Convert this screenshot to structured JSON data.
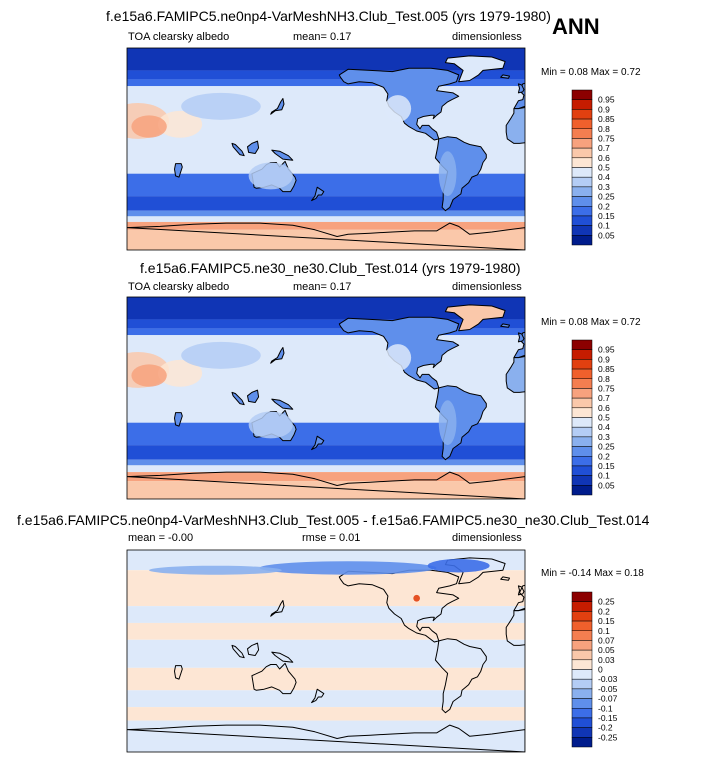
{
  "season": "ANN",
  "chart_data": [
    {
      "type": "heatmap",
      "title": "f.e15a6.FAMIPC5.ne0np4-VarMeshNH3.Club_Test.005 (yrs 1979-1980)",
      "left_label": "TOA clearsky albedo",
      "center_label": "mean=  0.17",
      "right_label": "dimensionless",
      "minmax_label": "Min = 0.08 Max =  0.72",
      "colorbar": {
        "levels": [
          "0.95",
          "0.9",
          "0.85",
          "0.8",
          "0.75",
          "0.7",
          "0.6",
          "0.5",
          "0.4",
          "0.3",
          "0.25",
          "0.2",
          "0.15",
          "0.1",
          "0.05"
        ],
        "colors": [
          "#8c0000",
          "#c61c00",
          "#e24010",
          "#f0602c",
          "#f47e50",
          "#f7a27e",
          "#fac8aa",
          "#fde6d4",
          "#dde9fa",
          "#b4cdf5",
          "#8ab0ee",
          "#5f8feb",
          "#3c6ee8",
          "#204fd6",
          "#1035b5",
          "#001c8c"
        ]
      },
      "bands": [
        {
          "y": 90,
          "color": "#1035b5"
        },
        {
          "y": 70,
          "color": "#204fd6"
        },
        {
          "y": 62,
          "color": "#3c6ee8"
        },
        {
          "y": 56,
          "color": "#dde9fa"
        },
        {
          "y": -22,
          "color": "#3c6ee8"
        },
        {
          "y": -42,
          "color": "#204fd6"
        },
        {
          "y": -55,
          "color": "#5f8feb"
        },
        {
          "y": -60,
          "color": "#dde9fa"
        },
        {
          "y": -65,
          "color": "#f7a27e"
        },
        {
          "y": -72,
          "color": "#fac8aa"
        }
      ]
    },
    {
      "type": "heatmap",
      "title": "f.e15a6.FAMIPC5.ne30_ne30.Club_Test.014 (yrs 1979-1980)",
      "left_label": "TOA clearsky albedo",
      "center_label": "mean=  0.17",
      "right_label": "dimensionless",
      "minmax_label": "Min =  0.08 Max =  0.72",
      "colorbar": {
        "levels": [
          "0.95",
          "0.9",
          "0.85",
          "0.8",
          "0.75",
          "0.7",
          "0.6",
          "0.5",
          "0.4",
          "0.3",
          "0.25",
          "0.2",
          "0.15",
          "0.1",
          "0.05"
        ],
        "colors": [
          "#8c0000",
          "#c61c00",
          "#e24010",
          "#f0602c",
          "#f47e50",
          "#f7a27e",
          "#fac8aa",
          "#fde6d4",
          "#dde9fa",
          "#b4cdf5",
          "#8ab0ee",
          "#5f8feb",
          "#3c6ee8",
          "#204fd6",
          "#1035b5",
          "#001c8c"
        ]
      },
      "bands": [
        {
          "y": 90,
          "color": "#1035b5"
        },
        {
          "y": 70,
          "color": "#204fd6"
        },
        {
          "y": 62,
          "color": "#3c6ee8"
        },
        {
          "y": 56,
          "color": "#dde9fa"
        },
        {
          "y": -22,
          "color": "#3c6ee8"
        },
        {
          "y": -42,
          "color": "#204fd6"
        },
        {
          "y": -55,
          "color": "#5f8feb"
        },
        {
          "y": -60,
          "color": "#dde9fa"
        },
        {
          "y": -66,
          "color": "#f7a27e"
        },
        {
          "y": -74,
          "color": "#fac8aa"
        }
      ]
    },
    {
      "type": "heatmap",
      "title": "f.e15a6.FAMIPC5.ne0np4-VarMeshNH3.Club_Test.005 - f.e15a6.FAMIPC5.ne30_ne30.Club_Test.014",
      "left_label": "mean =  -0.00",
      "center_label": "rmse =  0.01",
      "right_label": "dimensionless",
      "minmax_label": "Min =  -0.14 Max =  0.18",
      "colorbar": {
        "levels": [
          "0.25",
          "0.2",
          "0.15",
          "0.1",
          "0.07",
          "0.05",
          "0.03",
          "0",
          "-0.03",
          "-0.05",
          "-0.07",
          "-0.1",
          "-0.15",
          "-0.2",
          "-0.25"
        ],
        "colors": [
          "#8c0000",
          "#c61c00",
          "#e24010",
          "#f0602c",
          "#f47e50",
          "#f7a27e",
          "#fac8aa",
          "#fde6d4",
          "#dde9fa",
          "#b4cdf5",
          "#8ab0ee",
          "#5f8feb",
          "#3c6ee8",
          "#204fd6",
          "#1035b5",
          "#001c8c"
        ]
      },
      "bands": [
        {
          "y": 90,
          "color": "#dde9fa"
        },
        {
          "y": 72,
          "color": "#fde6d4"
        },
        {
          "y": 40,
          "color": "#dde9fa"
        },
        {
          "y": 25,
          "color": "#fde6d4"
        },
        {
          "y": 10,
          "color": "#dde9fa"
        },
        {
          "y": -15,
          "color": "#fde6d4"
        },
        {
          "y": -35,
          "color": "#dde9fa"
        },
        {
          "y": -50,
          "color": "#fde6d4"
        },
        {
          "y": -62,
          "color": "#dde9fa"
        }
      ]
    }
  ]
}
